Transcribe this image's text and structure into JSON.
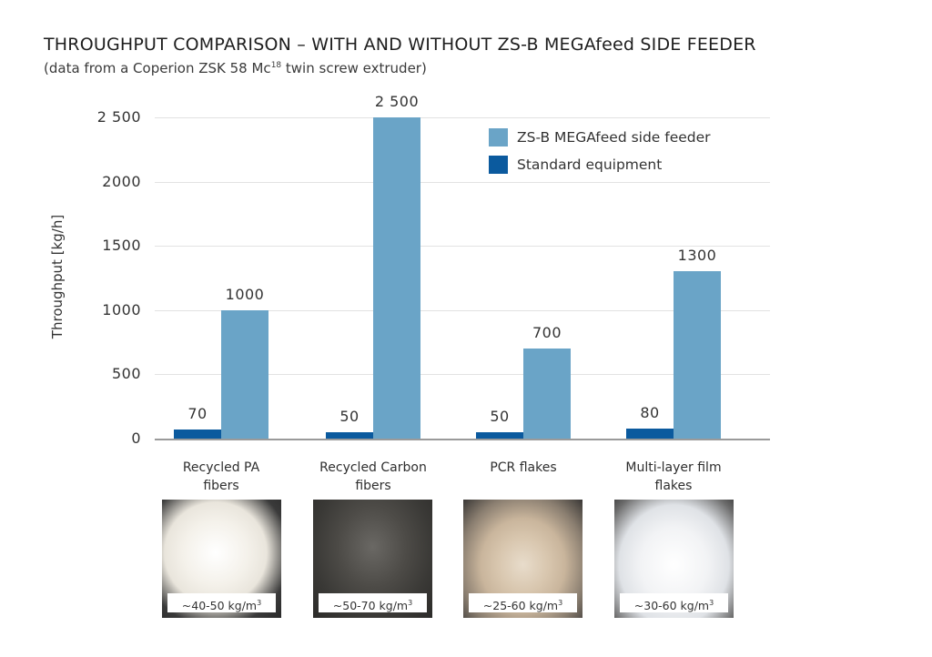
{
  "header": {
    "title": "THROUGHPUT COMPARISON – WITH AND WITHOUT ZS-B MEGAfeed SIDE FEEDER",
    "subtitle_prefix": "(data from a Coperion ZSK 58 Mc",
    "subtitle_sup": "18",
    "subtitle_suffix": " twin screw extruder)"
  },
  "chart_data": {
    "type": "bar",
    "title": "THROUGHPUT COMPARISON – WITH AND WITHOUT ZS-B MEGAfeed SIDE FEEDER",
    "subtitle": "(data from a Coperion ZSK 58 Mc18 twin screw extruder)",
    "xlabel": "",
    "ylabel": "Throughput [kg/h]",
    "ylim": [
      0,
      2500
    ],
    "yticks": [
      "0",
      "500",
      "1000",
      "1500",
      "2000",
      "2 500"
    ],
    "grid": true,
    "legend_position": "top-right",
    "categories": [
      "Recycled PA fibers",
      "Recycled Carbon fibers",
      "PCR flakes",
      "Multi-layer film flakes"
    ],
    "series": [
      {
        "name": "Standard equipment",
        "color": "#0b5a9e",
        "values": [
          70,
          50,
          50,
          80
        ],
        "labels": [
          "70",
          "50",
          "50",
          "80"
        ]
      },
      {
        "name": "ZS-B MEGAfeed side feeder",
        "color": "#6aa4c7",
        "values": [
          1000,
          2500,
          700,
          1300
        ],
        "labels": [
          "1000",
          "2 500",
          "700",
          "1300"
        ]
      }
    ],
    "annotations": {
      "bulk_density": [
        "~40-50 kg/m³",
        "~50-70 kg/m³",
        "~25-60 kg/m³",
        "~30-60 kg/m³"
      ]
    }
  },
  "legend": {
    "items": [
      {
        "label": "ZS-B MEGAfeed side feeder",
        "color": "#6aa4c7"
      },
      {
        "label": "Standard equipment",
        "color": "#0b5a9e"
      }
    ]
  },
  "categories": [
    {
      "line1": "Recycled PA",
      "line2": "fibers",
      "density": "~40-50 kg/m",
      "density_sup": "3",
      "photo": "white-fiber-photo"
    },
    {
      "line1": "Recycled Carbon",
      "line2": "fibers",
      "density": "~50-70 kg/m",
      "density_sup": "3",
      "photo": "carbon-fiber-photo"
    },
    {
      "line1": "PCR flakes",
      "line2": "",
      "density": "~25-60 kg/m",
      "density_sup": "3",
      "photo": "pcr-flakes-photo"
    },
    {
      "line1": "Multi-layer film",
      "line2": "flakes",
      "density": "~30-60 kg/m",
      "density_sup": "3",
      "photo": "film-flakes-photo"
    }
  ]
}
